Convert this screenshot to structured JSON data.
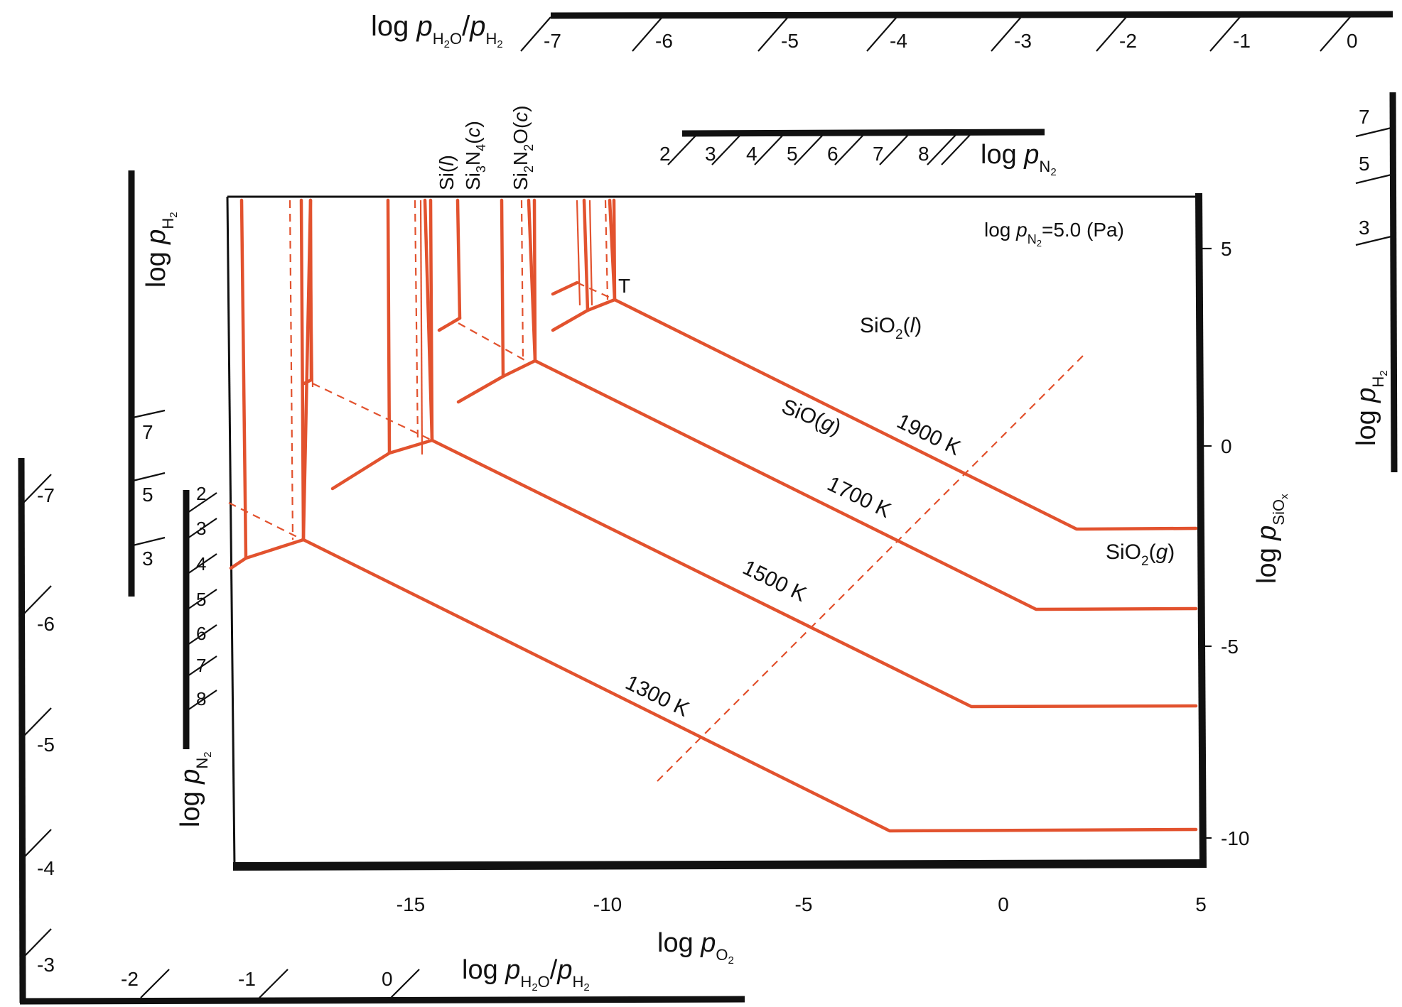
{
  "main_axes": {
    "x_label_base": "log ",
    "x_label_var": "p",
    "x_label_sub": "O",
    "x_label_sub2": "2",
    "x_ticks": [
      "-15",
      "-10",
      "-5",
      "0",
      "5"
    ],
    "y_label_base": "log ",
    "y_label_var": "p",
    "y_label_sub": "SiO",
    "y_label_subx": "x",
    "y_ticks": [
      "5",
      "0",
      "-5",
      "-10"
    ]
  },
  "inset": {
    "text_base": "log ",
    "text_var": "p",
    "text_sub": "N",
    "text_sub2": "2",
    "text_value": "=5.0 (Pa)"
  },
  "curves": [
    {
      "label": "1300 K"
    },
    {
      "label": "1500 K"
    },
    {
      "label": "1700 K"
    },
    {
      "label": "1900 K"
    }
  ],
  "regions": {
    "sio2_l": {
      "a": "SiO",
      "sub": "2",
      "b": "(",
      "it": "l",
      "c": ")"
    },
    "sio_g": {
      "a": "SiO(",
      "it": "g",
      "c": ")"
    },
    "sio2_g": {
      "a": "SiO",
      "sub": "2",
      "b": "(",
      "it": "g",
      "c": ")"
    },
    "triple_point": "T"
  },
  "phase_labels": {
    "si_l": {
      "a": "Si(",
      "it": "l",
      "c": ")"
    },
    "si3n4": {
      "a": "Si",
      "s1": "3",
      "b": "N",
      "s2": "4",
      "c": "(",
      "it": "c",
      "d": ")"
    },
    "si2n2o": {
      "a": "Si",
      "s1": "2",
      "b": "N",
      "s2": "2",
      "c": "O(",
      "it": "c",
      "d": ")"
    }
  },
  "top_scale": {
    "label_base": "log ",
    "label_var1": "p",
    "label_sub1": "H",
    "label_sub1b": "2",
    "label_sub1c": "O",
    "label_slash": "/",
    "label_var2": "p",
    "label_sub2": "H",
    "label_sub2b": "2",
    "ticks": [
      "-7",
      "-6",
      "-5",
      "-4",
      "-3",
      "-2",
      "-1",
      "0"
    ]
  },
  "top_n2_scale": {
    "label_base": "log ",
    "label_var": "p",
    "label_sub": "N",
    "label_sub2": "2",
    "ticks": [
      "2",
      "3",
      "4",
      "5",
      "6",
      "7",
      "8"
    ]
  },
  "left_h2_scale": {
    "label_base": "log ",
    "label_var": "p",
    "label_sub": "H",
    "label_sub2": "2",
    "ticks": [
      "7",
      "5",
      "3"
    ]
  },
  "left_n2_scale": {
    "label_base": "log ",
    "label_var": "p",
    "label_sub": "N",
    "label_sub2": "2",
    "ticks": [
      "2",
      "3",
      "4",
      "5",
      "6",
      "7",
      "8"
    ]
  },
  "right_h2_scale": {
    "label_base": "log ",
    "label_var": "p",
    "label_sub": "H",
    "label_sub2": "2",
    "ticks": [
      "7",
      "5",
      "3"
    ]
  },
  "left_ratio_scale": {
    "ticks": [
      "-7",
      "-6",
      "-5",
      "-4",
      "-3"
    ]
  },
  "bottom_ratio_scale": {
    "label_base": "log ",
    "label_var1": "p",
    "label_sub1": "H",
    "label_sub1b": "2",
    "label_sub1c": "O",
    "label_slash": "/",
    "label_var2": "p",
    "label_sub2": "H",
    "label_sub2b": "2",
    "ticks": [
      "-2",
      "-1",
      "0"
    ]
  }
}
